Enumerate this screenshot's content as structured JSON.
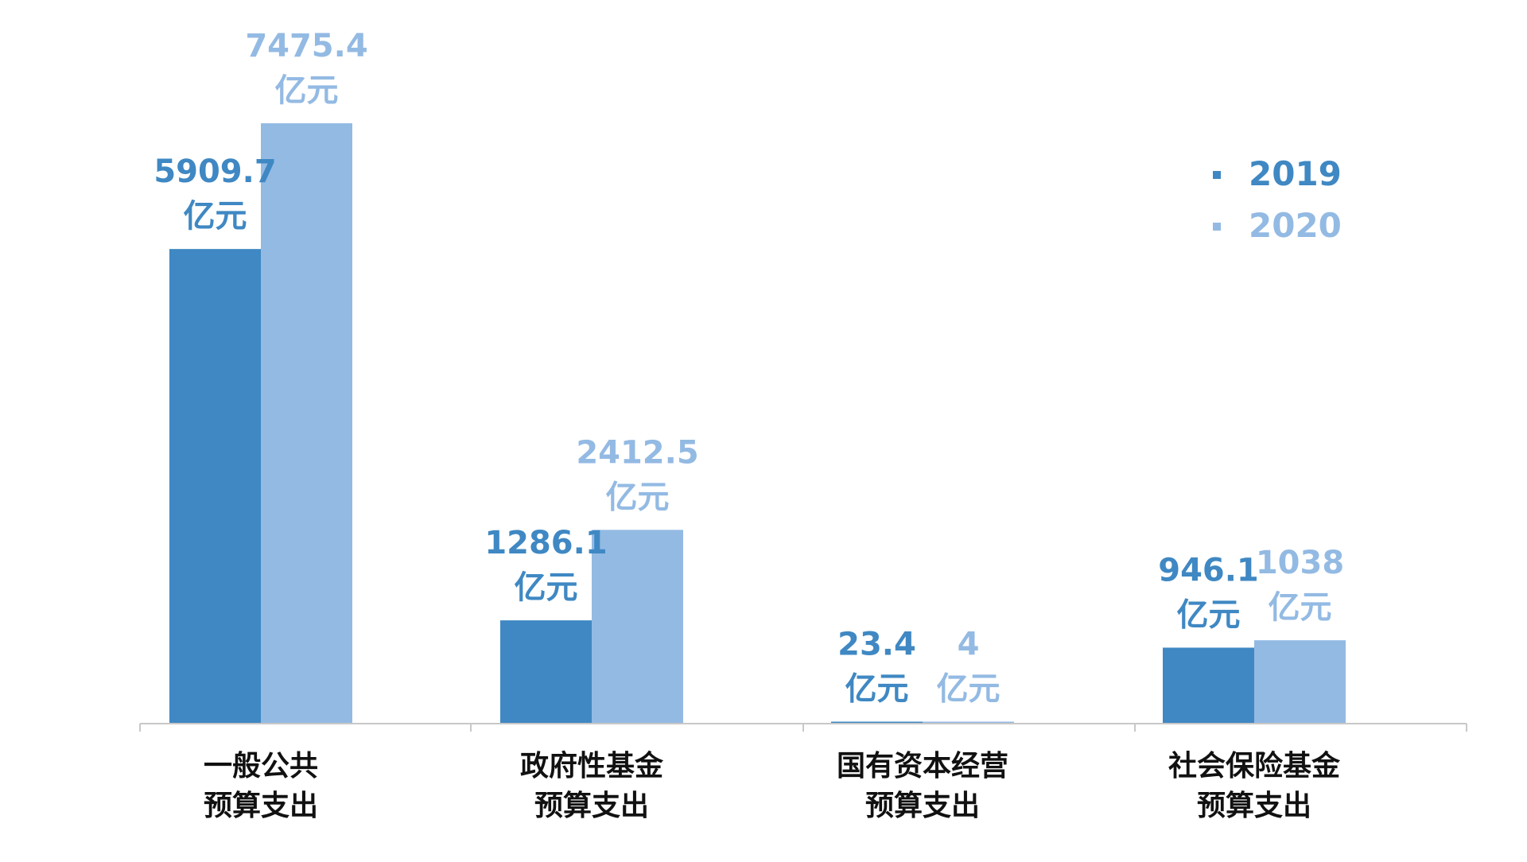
{
  "chart_data": {
    "type": "bar",
    "title": "",
    "xlabel": "",
    "ylabel": "",
    "unit": "亿元",
    "categories": [
      {
        "line1": "一般公共",
        "line2": "预算支出"
      },
      {
        "line1": "政府性基金",
        "line2": "预算支出"
      },
      {
        "line1": "国有资本经营",
        "line2": "预算支出"
      },
      {
        "line1": "社会保险基金",
        "line2": "预算支出"
      }
    ],
    "series": [
      {
        "name": "2019",
        "color": "#3F88C3",
        "values": [
          5909.7,
          1286.1,
          23.4,
          946.1
        ],
        "labels": [
          "5909.7",
          "1286.1",
          "23.4",
          "946.1"
        ]
      },
      {
        "name": "2020",
        "color": "#93BAE3",
        "values": [
          7475.4,
          2412.5,
          4,
          1038
        ],
        "labels": [
          "7475.4",
          "2412.5",
          "4",
          "1038"
        ]
      }
    ],
    "ylim": [
      0,
      7475.4
    ],
    "grid": false,
    "legend_position": "top-right"
  }
}
